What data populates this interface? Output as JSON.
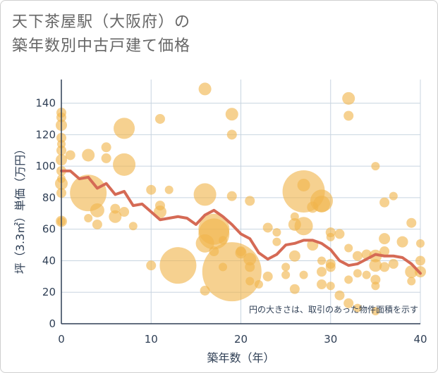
{
  "title_line1": "天下茶屋駅（大阪府）の",
  "title_line2": "築年数別中古戸建て価格",
  "chart_data": {
    "type": "scatter",
    "title": "天下茶屋駅（大阪府）の築年数別中古戸建て価格",
    "xlabel": "築年数（年）",
    "ylabel": "坪（3.3㎡）単価（万円）",
    "xlim": [
      0,
      40
    ],
    "ylim": [
      0,
      155
    ],
    "xticks": [
      0,
      10,
      20,
      30,
      40
    ],
    "yticks": [
      0,
      20,
      40,
      60,
      80,
      100,
      120,
      140
    ],
    "grid": true,
    "note": "円の大きさは、取引のあった物件面積を示す",
    "colors": {
      "bubble": "#f0b44c",
      "line": "#d56a55",
      "grid": "#c8d4e0"
    },
    "points": [
      [
        0,
        134,
        7
      ],
      [
        0,
        131,
        7
      ],
      [
        0,
        126,
        8
      ],
      [
        0,
        118,
        7
      ],
      [
        0,
        114,
        6
      ],
      [
        0,
        110,
        7
      ],
      [
        0,
        104,
        8
      ],
      [
        0,
        97,
        7
      ],
      [
        0,
        92,
        6
      ],
      [
        0,
        89,
        9
      ],
      [
        0,
        83,
        7
      ],
      [
        0,
        65,
        8
      ],
      [
        0,
        65,
        6
      ],
      [
        1,
        107,
        7
      ],
      [
        3,
        107,
        9
      ],
      [
        3,
        83,
        26
      ],
      [
        3,
        67,
        6
      ],
      [
        4,
        72,
        10
      ],
      [
        4,
        63,
        7
      ],
      [
        5,
        112,
        7
      ],
      [
        5,
        105,
        7
      ],
      [
        6,
        73,
        7
      ],
      [
        6,
        68,
        9
      ],
      [
        7,
        124,
        15
      ],
      [
        7,
        101,
        16
      ],
      [
        7,
        71,
        7
      ],
      [
        8,
        62,
        6
      ],
      [
        10,
        85,
        7
      ],
      [
        10,
        37,
        7
      ],
      [
        11,
        130,
        7
      ],
      [
        11,
        75,
        7
      ],
      [
        11,
        71,
        9
      ],
      [
        12,
        85,
        6
      ],
      [
        13,
        37,
        26
      ],
      [
        16,
        149,
        9
      ],
      [
        16,
        82,
        16
      ],
      [
        16,
        51,
        13
      ],
      [
        16,
        21,
        7
      ],
      [
        17,
        60,
        22
      ],
      [
        17,
        57,
        22
      ],
      [
        17,
        46,
        7
      ],
      [
        18,
        53,
        6
      ],
      [
        18,
        36,
        6
      ],
      [
        19,
        133,
        9
      ],
      [
        19,
        120,
        7
      ],
      [
        19,
        81,
        7
      ],
      [
        19,
        33,
        42
      ],
      [
        20,
        45,
        8
      ],
      [
        20,
        46,
        7
      ],
      [
        21,
        78,
        7
      ],
      [
        21,
        41,
        9
      ],
      [
        21,
        36,
        7
      ],
      [
        21,
        27,
        6
      ],
      [
        22,
        25,
        6
      ],
      [
        23,
        61,
        7
      ],
      [
        23,
        30,
        7
      ],
      [
        24,
        58,
        6
      ],
      [
        24,
        52,
        6
      ],
      [
        25,
        36,
        6
      ],
      [
        25,
        31,
        6
      ],
      [
        26,
        68,
        6
      ],
      [
        26,
        63,
        9
      ],
      [
        26,
        43,
        8
      ],
      [
        26,
        22,
        7
      ],
      [
        27,
        84,
        30
      ],
      [
        27,
        88,
        9
      ],
      [
        27,
        62,
        13
      ],
      [
        27,
        31,
        6
      ],
      [
        28,
        74,
        8
      ],
      [
        28,
        50,
        8
      ],
      [
        29,
        78,
        16
      ],
      [
        29,
        76,
        12
      ],
      [
        29,
        33,
        7
      ],
      [
        29,
        25,
        7
      ],
      [
        29,
        40,
        6
      ],
      [
        30,
        58,
        7
      ],
      [
        30,
        55,
        6
      ],
      [
        30,
        38,
        7
      ],
      [
        30,
        36,
        7
      ],
      [
        30,
        24,
        6
      ],
      [
        31,
        57,
        7
      ],
      [
        31,
        18,
        7
      ],
      [
        32,
        143,
        9
      ],
      [
        32,
        132,
        7
      ],
      [
        32,
        48,
        6
      ],
      [
        32,
        28,
        6
      ],
      [
        32,
        13,
        7
      ],
      [
        33,
        43,
        7
      ],
      [
        33,
        32,
        6
      ],
      [
        33,
        10,
        6
      ],
      [
        34,
        44,
        7
      ],
      [
        34,
        31,
        6
      ],
      [
        35,
        100,
        6
      ],
      [
        35,
        43,
        9
      ],
      [
        35,
        37,
        9
      ],
      [
        35,
        28,
        7
      ],
      [
        35,
        24,
        6
      ],
      [
        35,
        8,
        6
      ],
      [
        36,
        54,
        8
      ],
      [
        36,
        46,
        7
      ],
      [
        36,
        77,
        7
      ],
      [
        36,
        36,
        7
      ],
      [
        37,
        81,
        6
      ],
      [
        37,
        38,
        7
      ],
      [
        38,
        52,
        8
      ],
      [
        39,
        64,
        7
      ],
      [
        39,
        33,
        9
      ],
      [
        39,
        27,
        6
      ],
      [
        40,
        51,
        6
      ],
      [
        40,
        40,
        7
      ],
      [
        40,
        33,
        8
      ]
    ],
    "trend_line": [
      [
        0,
        97
      ],
      [
        1,
        97
      ],
      [
        2,
        92
      ],
      [
        3,
        93
      ],
      [
        4,
        86
      ],
      [
        5,
        89
      ],
      [
        6,
        82
      ],
      [
        7,
        84
      ],
      [
        8,
        75
      ],
      [
        9,
        76
      ],
      [
        10,
        71
      ],
      [
        11,
        66
      ],
      [
        12,
        67
      ],
      [
        13,
        68
      ],
      [
        14,
        67
      ],
      [
        15,
        63
      ],
      [
        16,
        69
      ],
      [
        17,
        72
      ],
      [
        18,
        68
      ],
      [
        19,
        63
      ],
      [
        20,
        57
      ],
      [
        21,
        54
      ],
      [
        22,
        45
      ],
      [
        23,
        41
      ],
      [
        24,
        44
      ],
      [
        25,
        50
      ],
      [
        26,
        51
      ],
      [
        27,
        53
      ],
      [
        28,
        53
      ],
      [
        29,
        51
      ],
      [
        30,
        47
      ],
      [
        31,
        40
      ],
      [
        32,
        37
      ],
      [
        33,
        38
      ],
      [
        34,
        41
      ],
      [
        35,
        44
      ],
      [
        36,
        43
      ],
      [
        37,
        43
      ],
      [
        38,
        42
      ],
      [
        39,
        38
      ],
      [
        40,
        32
      ]
    ]
  }
}
